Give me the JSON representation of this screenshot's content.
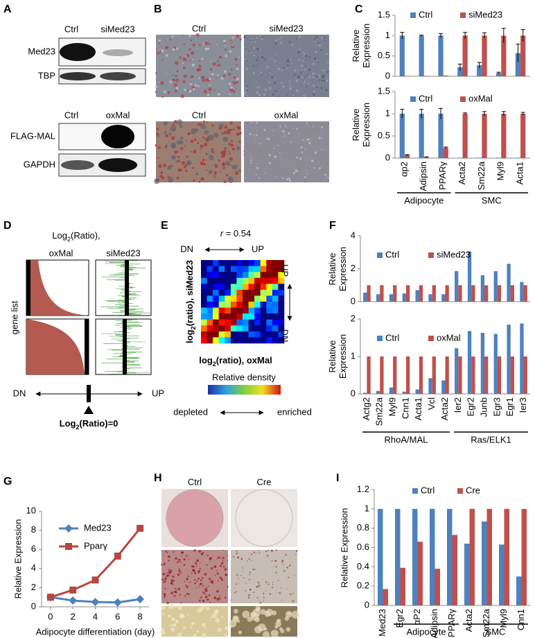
{
  "panel_letters": [
    "A",
    "B",
    "C",
    "D",
    "E",
    "F",
    "G",
    "H",
    "I"
  ],
  "blots": {
    "top": {
      "lanes": [
        "Ctrl",
        "siMed23"
      ],
      "rows": [
        "Med23",
        "TBP"
      ]
    },
    "bottom": {
      "lanes": [
        "Ctrl",
        "oxMal"
      ],
      "rows": [
        "FLAG-MAL",
        "GAPDH"
      ]
    }
  },
  "micrographs": {
    "top": [
      "Ctrl",
      "siMed23"
    ],
    "bottom": [
      "Ctrl",
      "oxMal"
    ]
  },
  "ranking": {
    "title": [
      "Log",
      "2",
      "(Ratio),"
    ],
    "columns": [
      "oxMal",
      "siMed23"
    ],
    "ylabel": "gene list",
    "left": "DN",
    "right": "UP",
    "zero": [
      "Log",
      "2",
      "(Ratio)=0"
    ]
  },
  "density": {
    "r": [
      "r",
      " = 0.54"
    ],
    "top_left": "DN",
    "top_right": "UP",
    "right_top": "UP",
    "right_bottom": "DN",
    "ylabel": [
      "log",
      "2",
      "(ratio), siMed23"
    ],
    "xlabel": [
      "log",
      "2",
      "(ratio), oxMal"
    ],
    "colorbar_title": "Relative density",
    "low": "depleted",
    "high": "enriched"
  },
  "dishes": {
    "columns": [
      "Ctrl",
      "Cre"
    ]
  },
  "chart_data": [
    {
      "type": "bar",
      "ylabel": "Relative Expression",
      "ylim": [
        0,
        1.5
      ],
      "yticks": [
        0,
        0.5,
        1,
        1.5
      ],
      "series": [
        {
          "name": "Ctrl",
          "color": "#4f81bd",
          "values": [
            1.0,
            1.0,
            1.0,
            0.22,
            0.27,
            0.08,
            0.57
          ],
          "errors": [
            0.08,
            0.01,
            0.05,
            0.08,
            0.07,
            0.02,
            0.22
          ]
        },
        {
          "name": "siMed23",
          "color": "#c0504d",
          "values": [
            0.01,
            0.01,
            0.02,
            1.0,
            1.0,
            1.0,
            1.0
          ],
          "errors": [
            0,
            0,
            0,
            0.08,
            0.07,
            0.18,
            0.15
          ]
        }
      ]
    },
    {
      "type": "bar",
      "ylabel": "Relative Expression",
      "ylim": [
        0,
        1.5
      ],
      "yticks": [
        0,
        0.5,
        1,
        1.5
      ],
      "categories": [
        "αp2",
        "Adipsin",
        "PPARγ",
        "Acta2",
        "Sm22a",
        "Myl9",
        "Acta1"
      ],
      "groups": [
        {
          "label": "Adipocyte",
          "categories": [
            "αp2",
            "Adipsin",
            "PPARγ"
          ]
        },
        {
          "label": "SMC",
          "categories": [
            "Acta2",
            "Sm22a",
            "Myl9",
            "Acta1"
          ]
        }
      ],
      "series": [
        {
          "name": "Ctrl",
          "color": "#4f81bd",
          "values": [
            1.0,
            1.0,
            1.0,
            0.01,
            0.01,
            0.01,
            0.01
          ],
          "errors": [
            0.1,
            0.1,
            0.12,
            0,
            0,
            0,
            0
          ]
        },
        {
          "name": "oxMal",
          "color": "#c0504d",
          "values": [
            0.07,
            0.02,
            0.23,
            1.0,
            1.0,
            1.0,
            1.0
          ],
          "errors": [
            0.01,
            0.01,
            0.02,
            0.02,
            0.05,
            0.05,
            0.03
          ]
        }
      ]
    },
    {
      "type": "bar",
      "ylabel": "Relative Expression",
      "ylim": [
        0,
        4
      ],
      "yticks": [
        0,
        2,
        4
      ],
      "series": [
        {
          "name": "Ctrl",
          "color": "#4f81bd",
          "values": [
            0.55,
            0.45,
            0.45,
            0.5,
            0.7,
            0.45,
            0.45,
            1.85,
            3.05,
            1.6,
            1.85,
            2.3,
            1.2
          ]
        },
        {
          "name": "siMed23",
          "color": "#c0504d",
          "values": [
            1,
            1,
            1,
            1,
            1,
            1,
            1,
            1,
            1,
            1,
            1,
            1,
            1
          ]
        }
      ]
    },
    {
      "type": "bar",
      "ylabel": "Relative Expression",
      "ylim": [
        0,
        2
      ],
      "yticks": [
        0,
        1,
        2
      ],
      "categories": [
        "Actg2",
        "Sm22a",
        "Myl9",
        "Cnn1",
        "Acta1",
        "Vcl",
        "Acta2",
        "Ier2",
        "Egr2",
        "Junb",
        "Egr3",
        "Egr1",
        "Ier3"
      ],
      "groups": [
        {
          "label": "RhoA/MAL",
          "categories": [
            "Actg2",
            "Sm22a",
            "Myl9",
            "Cnn1",
            "Acta1",
            "Vcl",
            "Acta2"
          ]
        },
        {
          "label": "Ras/ELK1",
          "categories": [
            "Ier2",
            "Egr2",
            "Junb",
            "Egr3",
            "Egr1",
            "Ier3"
          ]
        }
      ],
      "series": [
        {
          "name": "Ctrl",
          "color": "#4f81bd",
          "values": [
            0.03,
            0.08,
            0.17,
            0.06,
            0.12,
            0.42,
            0.36,
            1.22,
            1.68,
            1.63,
            1.6,
            1.85,
            1.88
          ]
        },
        {
          "name": "oxMal",
          "color": "#c0504d",
          "values": [
            1,
            1,
            1,
            1,
            1,
            1,
            1,
            1,
            1,
            1,
            1,
            1,
            1
          ]
        }
      ]
    },
    {
      "type": "line",
      "ylabel": "Relative Expression",
      "xlabel": "Adipocyte differentiation (day)",
      "x": [
        0,
        2,
        4,
        6,
        8
      ],
      "xlim": [
        -0.8,
        8.8
      ],
      "xticks": [
        0,
        2,
        4,
        6,
        8
      ],
      "ylim": [
        0,
        10
      ],
      "yticks": [
        0,
        2,
        4,
        6,
        8,
        10
      ],
      "series": [
        {
          "name": "Med23",
          "color": "#4f81bd",
          "marker": "diamond",
          "values": [
            1,
            0.65,
            0.5,
            0.45,
            0.8
          ]
        },
        {
          "name": "Pparγ",
          "color": "#b5473f",
          "marker": "square",
          "values": [
            1,
            1.75,
            2.8,
            5.3,
            8.2
          ]
        }
      ]
    },
    {
      "type": "bar",
      "ylabel": "Relative Expression",
      "ylim": [
        0,
        1.2
      ],
      "yticks": [
        0,
        0.2,
        0.4,
        0.6,
        0.8,
        1,
        1.2
      ],
      "categories": [
        "Med23",
        "Egr2",
        "αP2",
        "Adipsin",
        "PPARγ",
        "Acta2",
        "Sm22a",
        "Myl9",
        "Cnn1"
      ],
      "groups": [
        {
          "label": "Adipocyte",
          "categories": [
            "Egr2",
            "αP2",
            "Adipsin",
            "PPARγ"
          ]
        },
        {
          "label": "SMC",
          "categories": [
            "Acta2",
            "Sm22a",
            "Myl9",
            "Cnn1"
          ]
        }
      ],
      "series": [
        {
          "name": "Ctrl",
          "color": "#4f81bd",
          "values": [
            1,
            1,
            1,
            1,
            1,
            0.64,
            0.87,
            0.63,
            0.3
          ]
        },
        {
          "name": "Cre",
          "color": "#c0504d",
          "values": [
            0.17,
            0.39,
            0.66,
            0.38,
            0.73,
            1,
            1,
            1,
            1
          ]
        }
      ]
    }
  ]
}
